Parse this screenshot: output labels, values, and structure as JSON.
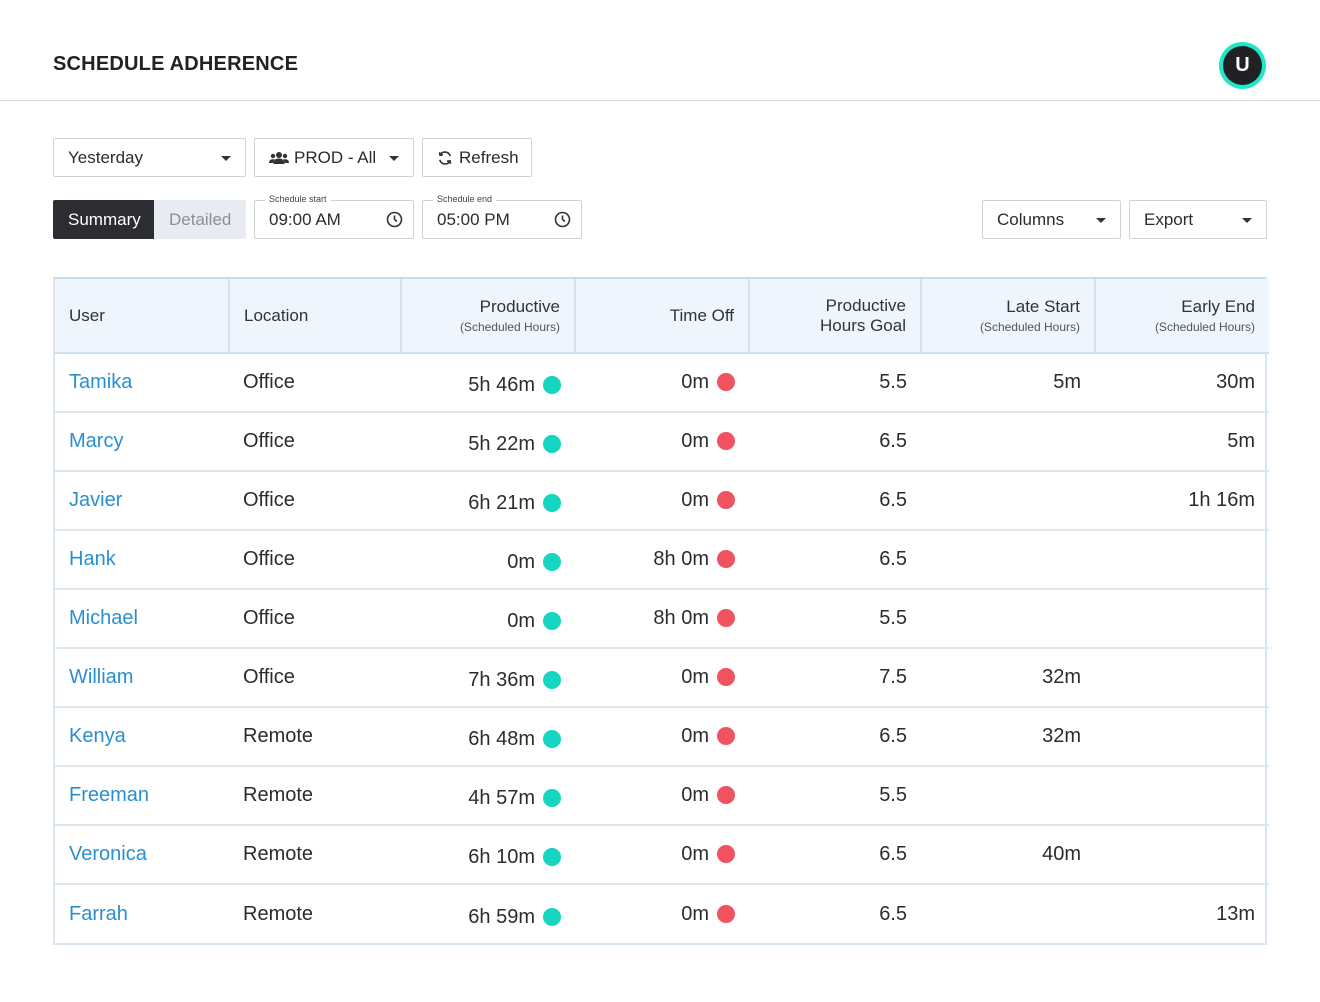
{
  "page": {
    "title": "SCHEDULE ADHERENCE",
    "avatar_initial": "U"
  },
  "filters": {
    "date_range": "Yesterday",
    "team": "PROD - All",
    "refresh_label": "Refresh"
  },
  "view_toggle": {
    "summary": "Summary",
    "detailed": "Detailed",
    "selected": "Summary"
  },
  "schedule": {
    "start_label": "Schedule start",
    "start_value": "09:00 AM",
    "end_label": "Schedule end",
    "end_value": "05:00 PM"
  },
  "actions": {
    "columns_label": "Columns",
    "export_label": "Export"
  },
  "table": {
    "headers": {
      "user": "User",
      "location": "Location",
      "productive": "Productive",
      "productive_sub": "(Scheduled Hours)",
      "time_off": "Time Off",
      "goal_line1": "Productive",
      "goal_line2": "Hours Goal",
      "late_start": "Late Start",
      "late_start_sub": "(Scheduled Hours)",
      "early_end": "Early End",
      "early_end_sub": "(Scheduled Hours)"
    },
    "rows": [
      {
        "user": "Tamika",
        "location": "Office",
        "productive": "5h 46m",
        "time_off": "0m",
        "goal": "5.5",
        "late_start": "5m",
        "early_end": "30m"
      },
      {
        "user": "Marcy",
        "location": "Office",
        "productive": "5h 22m",
        "time_off": "0m",
        "goal": "6.5",
        "late_start": "",
        "early_end": "5m"
      },
      {
        "user": "Javier",
        "location": "Office",
        "productive": "6h 21m",
        "time_off": "0m",
        "goal": "6.5",
        "late_start": "",
        "early_end": "1h 16m"
      },
      {
        "user": "Hank",
        "location": "Office",
        "productive": "0m",
        "time_off": "8h 0m",
        "goal": "6.5",
        "late_start": "",
        "early_end": ""
      },
      {
        "user": "Michael",
        "location": "Office",
        "productive": "0m",
        "time_off": "8h 0m",
        "goal": "5.5",
        "late_start": "",
        "early_end": ""
      },
      {
        "user": "William",
        "location": "Office",
        "productive": "7h 36m",
        "time_off": "0m",
        "goal": "7.5",
        "late_start": "32m",
        "early_end": ""
      },
      {
        "user": "Kenya",
        "location": "Remote",
        "productive": "6h 48m",
        "time_off": "0m",
        "goal": "6.5",
        "late_start": "32m",
        "early_end": ""
      },
      {
        "user": "Freeman",
        "location": "Remote",
        "productive": "4h 57m",
        "time_off": "0m",
        "goal": "5.5",
        "late_start": "",
        "early_end": ""
      },
      {
        "user": "Veronica",
        "location": "Remote",
        "productive": "6h 10m",
        "time_off": "0m",
        "goal": "6.5",
        "late_start": "40m",
        "early_end": ""
      },
      {
        "user": "Farrah",
        "location": "Remote",
        "productive": "6h 59m",
        "time_off": "0m",
        "goal": "6.5",
        "late_start": "",
        "early_end": "13m"
      }
    ]
  },
  "colors": {
    "accent": "#1de9c8",
    "link": "#2a8fd1",
    "productive_dot": "#15d6c1",
    "timeoff_dot": "#f0535f"
  }
}
